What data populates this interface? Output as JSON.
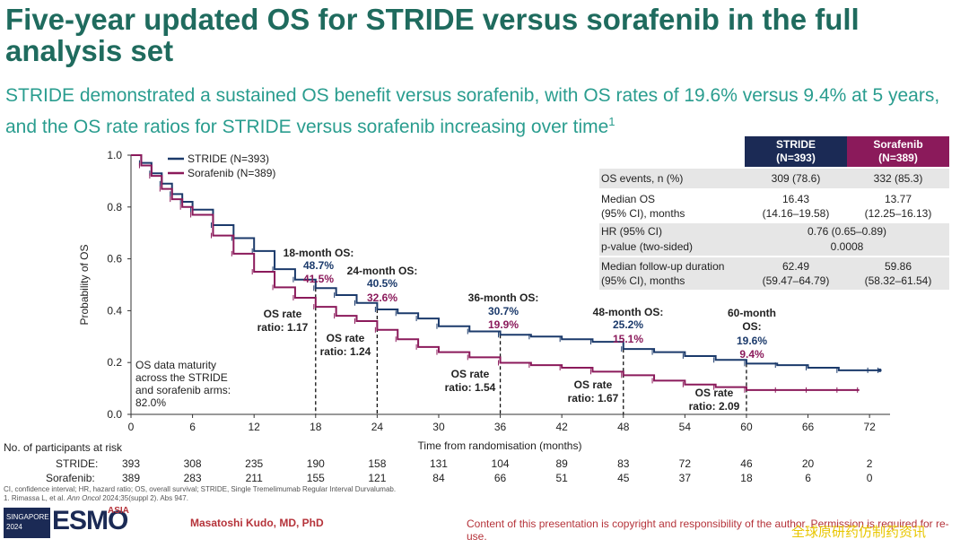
{
  "slide": {
    "title": "Five-year updated OS for STRIDE versus sorafenib in the full analysis set",
    "subtitle": "STRIDE demonstrated a sustained OS benefit versus sorafenib, with OS rates of 19.6% versus 9.4% at 5 years, and the OS rate ratios for STRIDE versus sorafenib increasing over time",
    "subtitle_sup": "1"
  },
  "chart_data": {
    "type": "line",
    "ylabel": "Probability of OS",
    "xlabel": "Time from randomisation (months)",
    "xlim": [
      0,
      74
    ],
    "ylim": [
      0,
      1.0
    ],
    "xticks": [
      0,
      6,
      12,
      18,
      24,
      30,
      36,
      42,
      48,
      54,
      60,
      66,
      72
    ],
    "yticks": [
      "0.0",
      "0.2",
      "0.4",
      "0.6",
      "0.8",
      "1.0"
    ],
    "legend": [
      "STRIDE (N=393)",
      "Sorafenib (N=389)"
    ],
    "colors": {
      "stride": "#1b3a6b",
      "sorafenib": "#8b1a5b"
    },
    "series": [
      {
        "name": "STRIDE (N=393)",
        "color": "#1b3a6b",
        "x": [
          0,
          1,
          2,
          3,
          4,
          5,
          6,
          8,
          10,
          12,
          14,
          16,
          18,
          20,
          22,
          24,
          26,
          28,
          30,
          33,
          36,
          39,
          42,
          45,
          48,
          51,
          54,
          57,
          60,
          63,
          66,
          69,
          72,
          73
        ],
        "y": [
          1.0,
          0.97,
          0.93,
          0.89,
          0.85,
          0.82,
          0.79,
          0.73,
          0.68,
          0.63,
          0.56,
          0.52,
          0.487,
          0.46,
          0.43,
          0.405,
          0.39,
          0.37,
          0.34,
          0.32,
          0.307,
          0.3,
          0.29,
          0.28,
          0.252,
          0.24,
          0.225,
          0.21,
          0.196,
          0.19,
          0.18,
          0.17,
          0.17,
          0.17
        ]
      },
      {
        "name": "Sorafenib (N=389)",
        "color": "#8b1a5b",
        "x": [
          0,
          1,
          2,
          3,
          4,
          5,
          6,
          8,
          10,
          12,
          14,
          16,
          18,
          20,
          22,
          24,
          26,
          28,
          30,
          33,
          36,
          39,
          42,
          45,
          48,
          51,
          54,
          57,
          60,
          63,
          66,
          69,
          71
        ],
        "y": [
          1.0,
          0.96,
          0.92,
          0.87,
          0.83,
          0.8,
          0.77,
          0.69,
          0.62,
          0.55,
          0.49,
          0.45,
          0.415,
          0.38,
          0.36,
          0.326,
          0.29,
          0.26,
          0.24,
          0.22,
          0.199,
          0.19,
          0.18,
          0.165,
          0.151,
          0.13,
          0.115,
          0.105,
          0.094,
          0.094,
          0.094,
          0.094,
          0.094
        ]
      }
    ],
    "annotations": [
      {
        "month": 18,
        "label": "18-month OS:",
        "stride": "48.7%",
        "sorafenib": "41.5%",
        "ratio": [
          "OS rate",
          "ratio: 1.17"
        ]
      },
      {
        "month": 24,
        "label": "24-month OS:",
        "stride": "40.5%",
        "sorafenib": "32.6%",
        "ratio": [
          "OS rate",
          "ratio: 1.24"
        ]
      },
      {
        "month": 36,
        "label": "36-month OS:",
        "stride": "30.7%",
        "sorafenib": "19.9%",
        "ratio": [
          "OS rate",
          "ratio: 1.54"
        ]
      },
      {
        "month": 48,
        "label": "48-month OS:",
        "stride": "25.2%",
        "sorafenib": "15.1%",
        "ratio": [
          "OS rate",
          "ratio: 1.67"
        ]
      },
      {
        "month": 60,
        "label": [
          "60-month",
          "OS:"
        ],
        "stride": "19.6%",
        "sorafenib": "9.4%",
        "ratio": [
          "OS rate",
          "ratio: 2.09"
        ]
      }
    ],
    "maturity_note": [
      "OS data maturity",
      "across the STRIDE",
      "and sorafenib arms:",
      "82.0%"
    ]
  },
  "table": {
    "col1": [
      "STRIDE",
      "(N=393)"
    ],
    "col2": [
      "Sorafenib",
      "(N=389)"
    ],
    "rows": {
      "events_label": "OS events, n (%)",
      "events_1": "309 (78.6)",
      "events_2": "332 (85.3)",
      "median_label_1": "Median OS",
      "median_label_2": "(95% CI), months",
      "median_1a": "16.43",
      "median_1b": "(14.16–19.58)",
      "median_2a": "13.77",
      "median_2b": "(12.25–16.13)",
      "hr_label": "HR (95% CI)",
      "hr_value": "0.76 (0.65–0.89)",
      "p_label": "p-value (two-sided)",
      "p_value": "0.0008",
      "fu_label_1": "Median follow-up duration",
      "fu_label_2": "(95% CI), months",
      "fu_1a": "62.49",
      "fu_1b": "(59.47–64.79)",
      "fu_2a": "59.86",
      "fu_2b": "(58.32–61.54)"
    }
  },
  "risk_table": {
    "title": "No. of participants at risk",
    "stride_label": "STRIDE:",
    "sorafenib_label": "Sorafenib:",
    "stride": [
      "393",
      "308",
      "235",
      "190",
      "158",
      "131",
      "104",
      "89",
      "83",
      "72",
      "46",
      "20",
      "2"
    ],
    "sorafenib": [
      "389",
      "283",
      "211",
      "155",
      "121",
      "84",
      "66",
      "51",
      "45",
      "37",
      "18",
      "6",
      "0"
    ]
  },
  "footer": {
    "abbrev": "CI, confidence interval; HR, hazard ratio; OS, overall survival; STRIDE, Single Tremelimumab Regular Interval Durvalumab.",
    "ref_pre": "1. Rimassa L, et al. ",
    "ref_journal": "Ann Oncol",
    "ref_post": " 2024;35(suppl 2). Abs 947.",
    "presenter": "Masatoshi Kudo, MD, PhD",
    "copyright": "Content of this presentation is copyright and responsibility of the author. Permission is required for re-use.",
    "logo_city": "SINGAPORE",
    "logo_year": "2024",
    "logo_main": "ESMO",
    "logo_sub": "ASIA",
    "watermark": "全球原研药仿制药资讯"
  }
}
